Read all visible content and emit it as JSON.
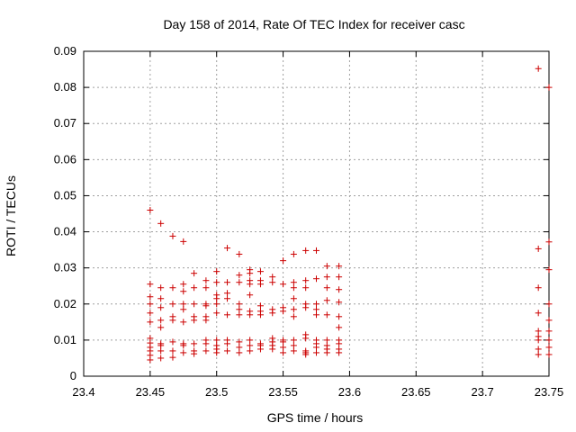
{
  "chart_data": {
    "type": "scatter",
    "title": "Day 158 of 2014, Rate Of TEC Index for receiver casc",
    "xlabel": "GPS time / hours",
    "ylabel": "ROTI / TECUs",
    "xlim": [
      23.4,
      23.75
    ],
    "ylim": [
      0,
      0.09
    ],
    "xticks": [
      "23.4",
      "23.45",
      "23.5",
      "23.55",
      "23.6",
      "23.65",
      "23.7",
      "23.75"
    ],
    "yticks": [
      "0",
      "0.01",
      "0.02",
      "0.03",
      "0.04",
      "0.05",
      "0.06",
      "0.07",
      "0.08",
      "0.09"
    ],
    "grid": true,
    "marker": "+",
    "color": "#cc0000",
    "series": [
      {
        "name": "ROTI",
        "x": [
          23.45,
          23.45,
          23.45,
          23.45,
          23.45,
          23.45,
          23.45,
          23.45,
          23.45,
          23.45,
          23.45,
          23.45,
          23.458,
          23.458,
          23.458,
          23.458,
          23.458,
          23.458,
          23.458,
          23.458,
          23.458,
          23.458,
          23.467,
          23.467,
          23.467,
          23.467,
          23.467,
          23.467,
          23.467,
          23.467,
          23.475,
          23.475,
          23.475,
          23.475,
          23.475,
          23.475,
          23.475,
          23.475,
          23.475,
          23.483,
          23.483,
          23.483,
          23.483,
          23.483,
          23.483,
          23.483,
          23.483,
          23.492,
          23.492,
          23.492,
          23.492,
          23.492,
          23.492,
          23.492,
          23.492,
          23.492,
          23.5,
          23.5,
          23.5,
          23.5,
          23.5,
          23.5,
          23.5,
          23.5,
          23.5,
          23.5,
          23.508,
          23.508,
          23.508,
          23.508,
          23.508,
          23.508,
          23.508,
          23.508,
          23.517,
          23.517,
          23.517,
          23.517,
          23.517,
          23.517,
          23.517,
          23.517,
          23.517,
          23.525,
          23.525,
          23.525,
          23.525,
          23.525,
          23.525,
          23.525,
          23.525,
          23.525,
          23.525,
          23.533,
          23.533,
          23.533,
          23.533,
          23.533,
          23.533,
          23.533,
          23.533,
          23.533,
          23.542,
          23.542,
          23.542,
          23.542,
          23.542,
          23.542,
          23.542,
          23.542,
          23.55,
          23.55,
          23.55,
          23.55,
          23.55,
          23.55,
          23.55,
          23.55,
          23.558,
          23.558,
          23.558,
          23.558,
          23.558,
          23.558,
          23.558,
          23.558,
          23.558,
          23.567,
          23.567,
          23.567,
          23.567,
          23.567,
          23.567,
          23.567,
          23.567,
          23.567,
          23.567,
          23.575,
          23.575,
          23.575,
          23.575,
          23.575,
          23.575,
          23.575,
          23.575,
          23.575,
          23.583,
          23.583,
          23.583,
          23.583,
          23.583,
          23.583,
          23.583,
          23.583,
          23.583,
          23.592,
          23.592,
          23.592,
          23.592,
          23.592,
          23.592,
          23.592,
          23.592,
          23.592,
          23.592,
          23.742,
          23.742,
          23.742,
          23.742,
          23.742,
          23.742,
          23.742,
          23.742,
          23.742,
          23.75,
          23.75,
          23.75,
          23.75,
          23.75,
          23.75,
          23.75,
          23.75,
          23.75
        ],
        "y": [
          0.046,
          0.0255,
          0.022,
          0.02,
          0.0175,
          0.015,
          0.0105,
          0.0092,
          0.008,
          0.007,
          0.0058,
          0.0045,
          0.0423,
          0.0245,
          0.0215,
          0.019,
          0.0155,
          0.0135,
          0.009,
          0.0085,
          0.007,
          0.005,
          0.0388,
          0.0245,
          0.02,
          0.0165,
          0.0155,
          0.0095,
          0.007,
          0.0052,
          0.0373,
          0.0255,
          0.0235,
          0.02,
          0.0185,
          0.015,
          0.009,
          0.0085,
          0.0065,
          0.0285,
          0.0245,
          0.02,
          0.0165,
          0.0155,
          0.009,
          0.007,
          0.0062,
          0.0265,
          0.0245,
          0.02,
          0.0195,
          0.0165,
          0.0155,
          0.01,
          0.009,
          0.007,
          0.029,
          0.026,
          0.0225,
          0.0215,
          0.02,
          0.0175,
          0.01,
          0.0085,
          0.0075,
          0.0065,
          0.0355,
          0.026,
          0.023,
          0.0215,
          0.017,
          0.01,
          0.009,
          0.007,
          0.0338,
          0.028,
          0.026,
          0.02,
          0.0185,
          0.017,
          0.0095,
          0.008,
          0.0065,
          0.0295,
          0.0285,
          0.0265,
          0.0255,
          0.0225,
          0.018,
          0.017,
          0.01,
          0.0085,
          0.007,
          0.029,
          0.0265,
          0.0255,
          0.0195,
          0.018,
          0.017,
          0.009,
          0.0085,
          0.0075,
          0.0275,
          0.026,
          0.0185,
          0.0175,
          0.0105,
          0.0095,
          0.0085,
          0.0075,
          0.032,
          0.0255,
          0.019,
          0.018,
          0.01,
          0.0095,
          0.008,
          0.0065,
          0.0338,
          0.026,
          0.0245,
          0.0215,
          0.0185,
          0.0165,
          0.01,
          0.0085,
          0.007,
          0.0348,
          0.0265,
          0.0245,
          0.02,
          0.019,
          0.0115,
          0.0105,
          0.007,
          0.0065,
          0.006,
          0.0348,
          0.027,
          0.02,
          0.0185,
          0.017,
          0.01,
          0.009,
          0.008,
          0.0065,
          0.0305,
          0.0275,
          0.0245,
          0.021,
          0.017,
          0.01,
          0.0085,
          0.0075,
          0.0065,
          0.0305,
          0.0275,
          0.024,
          0.0205,
          0.0165,
          0.0135,
          0.01,
          0.009,
          0.0075,
          0.0065,
          0.0852,
          0.0353,
          0.0245,
          0.0175,
          0.0125,
          0.011,
          0.01,
          0.0075,
          0.006,
          0.08,
          0.0372,
          0.0295,
          0.02,
          0.0155,
          0.0125,
          0.01,
          0.008,
          0.006
        ]
      }
    ]
  }
}
